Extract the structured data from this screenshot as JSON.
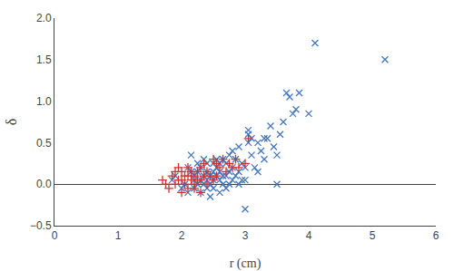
{
  "chart_data": {
    "type": "scatter",
    "x_label": "r (cm)",
    "y_label": "δ",
    "series": [
      {
        "color": "#4477bb",
        "marker": "x",
        "x": [
          1.85,
          1.9,
          2.0,
          2.05,
          2.1,
          2.1,
          2.15,
          2.15,
          2.2,
          2.2,
          2.2,
          2.25,
          2.25,
          2.25,
          2.3,
          2.3,
          2.3,
          2.35,
          2.35,
          2.35,
          2.4,
          2.4,
          2.4,
          2.4,
          2.45,
          2.45,
          2.45,
          2.5,
          2.5,
          2.5,
          2.5,
          2.55,
          2.55,
          2.55,
          2.6,
          2.6,
          2.6,
          2.6,
          2.65,
          2.65,
          2.65,
          2.7,
          2.7,
          2.7,
          2.75,
          2.75,
          2.75,
          2.8,
          2.8,
          2.8,
          2.85,
          2.85,
          2.9,
          2.9,
          2.9,
          2.95,
          2.95,
          3.0,
          3.0,
          3.0,
          3.05,
          3.05,
          3.05,
          3.1,
          3.1,
          3.15,
          3.2,
          3.2,
          3.25,
          3.3,
          3.3,
          3.35,
          3.4,
          3.45,
          3.5,
          3.5,
          3.55,
          3.6,
          3.65,
          3.7,
          3.75,
          3.8,
          3.85,
          4.0,
          4.1,
          5.2
        ],
        "values": [
          0.05,
          0.1,
          -0.05,
          0.0,
          0.2,
          -0.1,
          0.15,
          0.35,
          0.05,
          0.1,
          -0.05,
          0.0,
          0.15,
          0.25,
          -0.1,
          0.05,
          0.2,
          0.1,
          0.0,
          0.3,
          -0.05,
          0.05,
          0.15,
          0.25,
          0.0,
          0.1,
          -0.15,
          0.05,
          0.15,
          0.25,
          -0.05,
          0.1,
          0.2,
          0.3,
          -0.1,
          0.05,
          0.15,
          0.25,
          0.0,
          0.1,
          0.3,
          -0.05,
          0.1,
          0.25,
          0.0,
          0.15,
          0.35,
          0.05,
          0.2,
          0.4,
          0.1,
          0.3,
          0.0,
          0.15,
          0.45,
          0.05,
          0.25,
          -0.3,
          0.05,
          0.2,
          0.5,
          0.6,
          0.65,
          0.55,
          0.35,
          0.2,
          0.5,
          0.15,
          0.4,
          0.3,
          0.55,
          0.55,
          0.7,
          0.45,
          0.35,
          0.0,
          0.6,
          0.75,
          1.1,
          1.05,
          0.85,
          0.9,
          1.1,
          0.85,
          1.7,
          1.5
        ]
      },
      {
        "color": "#cc3333",
        "marker": "plus",
        "x": [
          1.7,
          1.75,
          1.8,
          1.85,
          1.9,
          1.9,
          1.95,
          1.95,
          2.0,
          2.0,
          2.0,
          2.05,
          2.05,
          2.1,
          2.1,
          2.1,
          2.15,
          2.15,
          2.2,
          2.2,
          2.2,
          2.25,
          2.25,
          2.3,
          2.3,
          2.3,
          2.35,
          2.35,
          2.4,
          2.4,
          2.45,
          2.5,
          2.5,
          2.55,
          2.55,
          2.6,
          2.65,
          2.7,
          2.75,
          2.8,
          2.85,
          2.9,
          3.0,
          3.05
        ],
        "values": [
          0.05,
          0.0,
          -0.05,
          0.1,
          0.0,
          0.15,
          0.05,
          0.2,
          -0.1,
          0.05,
          0.15,
          0.0,
          0.1,
          -0.05,
          0.1,
          0.2,
          0.05,
          0.15,
          -0.05,
          0.0,
          0.1,
          0.05,
          0.15,
          -0.1,
          0.05,
          0.2,
          0.1,
          0.25,
          0.0,
          0.15,
          0.1,
          0.05,
          0.3,
          0.1,
          0.25,
          0.2,
          0.3,
          0.15,
          0.25,
          0.2,
          0.3,
          0.2,
          0.25,
          0.55
        ]
      }
    ],
    "xlim": [
      0,
      6
    ],
    "ylim": [
      -0.5,
      2.0
    ],
    "xticks": [
      0,
      1,
      2,
      3,
      4,
      5,
      6
    ],
    "yticks": [
      {
        "value": -0.5,
        "label": "−0.5"
      },
      {
        "value": 0,
        "label": "0.0"
      },
      0.5,
      {
        "value": 1.0,
        "label": "1.0"
      },
      1.5,
      {
        "value": 2.0,
        "label": "2.0"
      }
    ],
    "grid": false
  }
}
